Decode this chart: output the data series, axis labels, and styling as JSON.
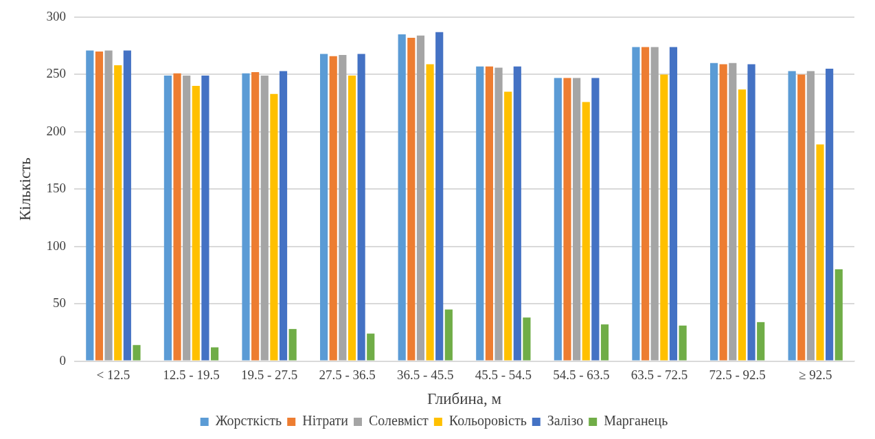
{
  "chart_data": {
    "type": "bar",
    "xlabel": "Глибина, м",
    "ylabel": "Кількість",
    "categories": [
      "< 12.5",
      "12.5 - 19.5",
      "19.5 - 27.5",
      "27.5 - 36.5",
      "36.5 - 45.5",
      "45.5 - 54.5",
      "54.5 - 63.5",
      "63.5 - 72.5",
      "72.5 - 92.5",
      "≥ 92.5"
    ],
    "series": [
      {
        "name": "Жорсткість",
        "color": "#5b9bd5",
        "values": [
          271,
          249,
          251,
          268,
          285,
          257,
          247,
          274,
          260,
          253
        ]
      },
      {
        "name": "Нітрати",
        "color": "#ed7d31",
        "values": [
          270,
          251,
          252,
          266,
          282,
          257,
          247,
          274,
          259,
          250
        ]
      },
      {
        "name": "Солевміст",
        "color": "#a5a5a5",
        "values": [
          271,
          249,
          249,
          267,
          284,
          256,
          247,
          274,
          260,
          253
        ]
      },
      {
        "name": "Кольоровість",
        "color": "#ffc000",
        "values": [
          258,
          240,
          233,
          249,
          259,
          235,
          226,
          250,
          237,
          189
        ]
      },
      {
        "name": "Залізо",
        "color": "#4472c4",
        "values": [
          271,
          249,
          253,
          268,
          287,
          257,
          247,
          274,
          259,
          255
        ]
      },
      {
        "name": "Марганець",
        "color": "#70ad47",
        "values": [
          14,
          12,
          28,
          24,
          45,
          38,
          32,
          31,
          34,
          80
        ]
      }
    ],
    "ylim": [
      0,
      300
    ],
    "yticks": [
      0,
      50,
      100,
      150,
      200,
      250,
      300
    ],
    "grid": "y",
    "legend": "bottom"
  }
}
